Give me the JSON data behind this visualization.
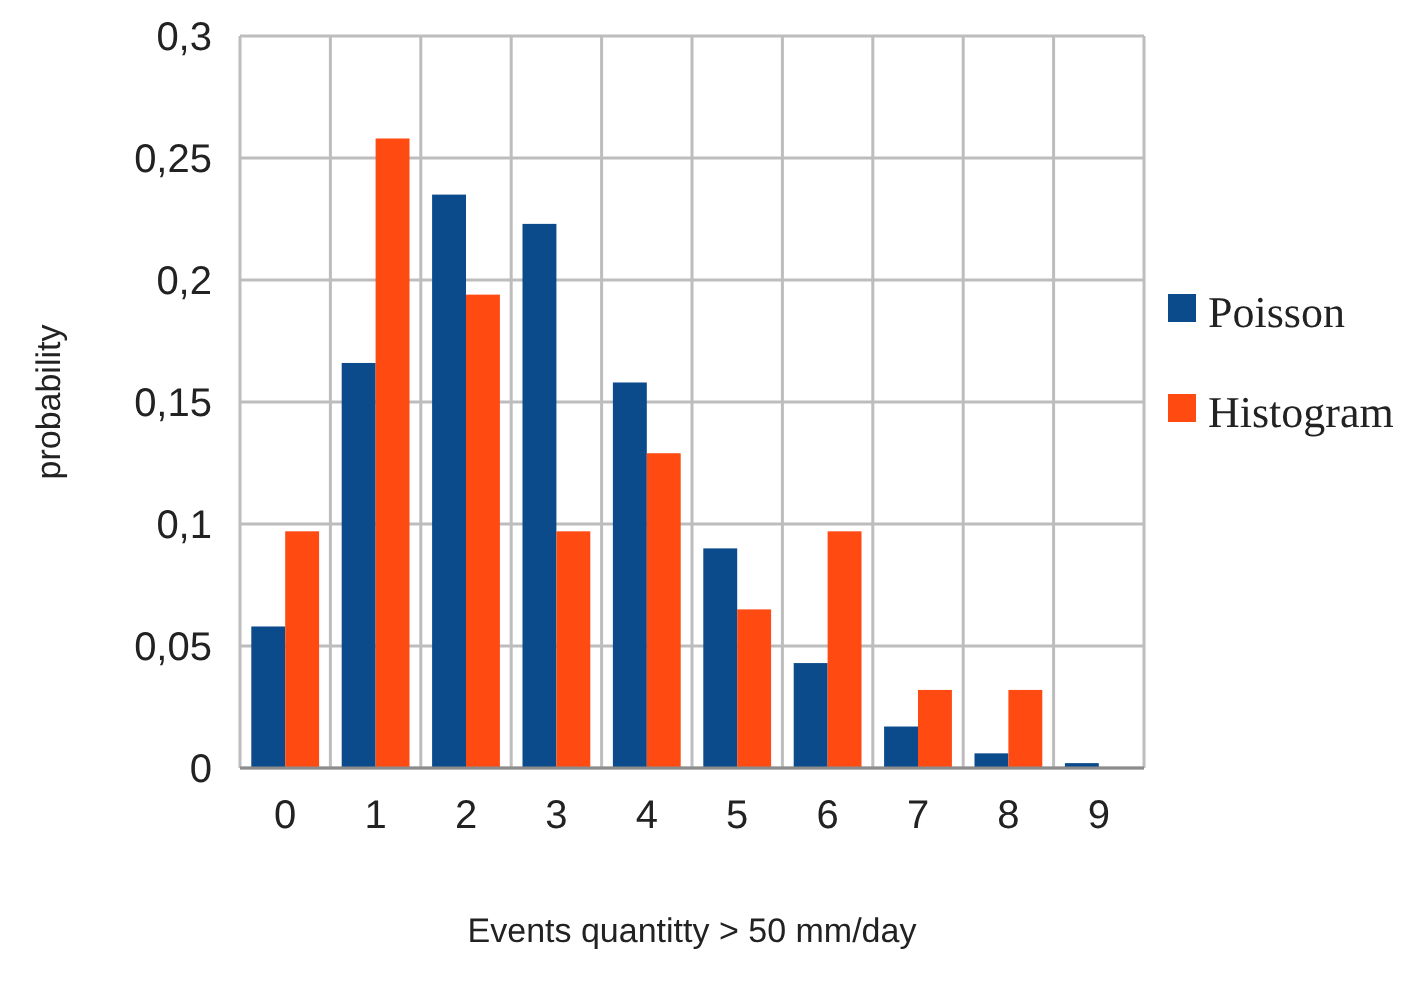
{
  "chart_data": {
    "type": "bar",
    "xlabel": "Events quantitty > 50 mm/day",
    "ylabel": "probability",
    "categories": [
      "0",
      "1",
      "2",
      "3",
      "4",
      "5",
      "6",
      "7",
      "8",
      "9"
    ],
    "series": [
      {
        "name": "Poisson",
        "color": "#0b4a8b",
        "values": [
          0.058,
          0.166,
          0.235,
          0.223,
          0.158,
          0.09,
          0.043,
          0.017,
          0.006,
          0.002
        ]
      },
      {
        "name": "Histogram",
        "color": "#ff4a12",
        "values": [
          0.097,
          0.258,
          0.194,
          0.097,
          0.129,
          0.065,
          0.097,
          0.032,
          0.032,
          0
        ]
      }
    ],
    "ylim": [
      0,
      0.3
    ],
    "yticks": [
      {
        "value": 0,
        "label": "0"
      },
      {
        "value": 0.05,
        "label": "0,05"
      },
      {
        "value": 0.1,
        "label": "0,1"
      },
      {
        "value": 0.15,
        "label": "0,15"
      },
      {
        "value": 0.2,
        "label": "0,2"
      },
      {
        "value": 0.25,
        "label": "0,25"
      },
      {
        "value": 0.3,
        "label": "0,3"
      }
    ],
    "grid": true,
    "legend": "right"
  }
}
